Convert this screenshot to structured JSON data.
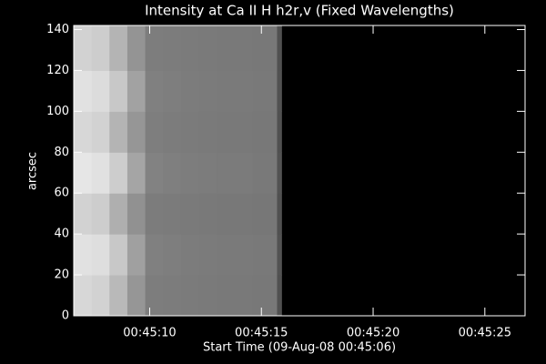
{
  "chart_data": {
    "type": "heatmap",
    "title": "Intensity at Ca II H h2r,v (Fixed Wavelengths)",
    "x_label": "Start Time (09-Aug-08 00:45:06)",
    "y_label": "arcsec",
    "x_edges": [
      0.6,
      1.4,
      2.2,
      3.0,
      3.8,
      4.6,
      5.4,
      6.2,
      7.0,
      8.6,
      9.7,
      9.9
    ],
    "y_edges": [
      0,
      20,
      40,
      60,
      80,
      100,
      120,
      142
    ],
    "values": [
      [
        215,
        210,
        185,
        150,
        125,
        124,
        123,
        122,
        121,
        120,
        80
      ],
      [
        225,
        222,
        200,
        160,
        128,
        126,
        124,
        123,
        122,
        121,
        82
      ],
      [
        210,
        205,
        175,
        145,
        124,
        123,
        122,
        121,
        120,
        119,
        80
      ],
      [
        230,
        225,
        205,
        165,
        130,
        127,
        125,
        124,
        123,
        121,
        82
      ],
      [
        215,
        210,
        180,
        150,
        126,
        124,
        123,
        122,
        121,
        120,
        80
      ],
      [
        225,
        220,
        200,
        162,
        128,
        126,
        124,
        123,
        122,
        121,
        81
      ],
      [
        210,
        205,
        180,
        148,
        125,
        124,
        123,
        122,
        121,
        120,
        80
      ]
    ],
    "zlim": [
      0,
      255
    ],
    "xlim": [
      0.6,
      20.8
    ],
    "ylim": [
      0,
      142
    ],
    "xticks": [
      {
        "value": 4,
        "label": "00:45:10"
      },
      {
        "value": 9,
        "label": "00:45:15"
      },
      {
        "value": 14,
        "label": "00:45:20"
      },
      {
        "value": 19,
        "label": "00:45:25"
      }
    ],
    "yticks": [
      0,
      20,
      40,
      60,
      80,
      100,
      120,
      140
    ]
  }
}
